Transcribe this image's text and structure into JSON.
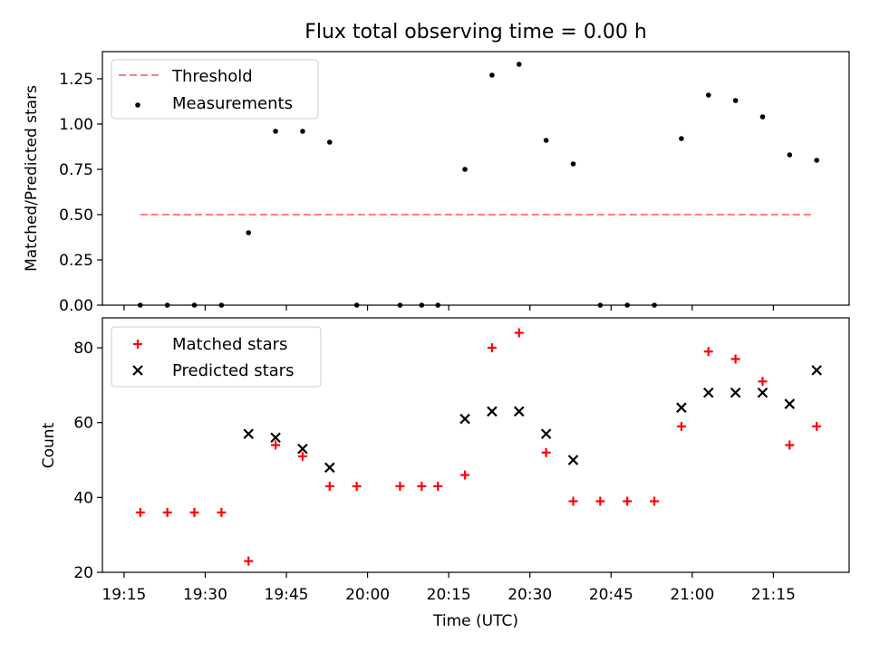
{
  "chart_data": [
    {
      "type": "scatter",
      "title": "Flux total observing time = 0.00 h",
      "xlabel": "",
      "ylabel": "Matched/Predicted stars",
      "x_unit": "time_utc",
      "xlim": [
        "19:11",
        "21:29"
      ],
      "ylim": [
        0,
        1.4
      ],
      "yticks": [
        "0.00",
        "0.25",
        "0.50",
        "0.75",
        "1.00",
        "1.25"
      ],
      "ytick_values": [
        0,
        0.25,
        0.5,
        0.75,
        1.0,
        1.25
      ],
      "xtick_labels_shown": false,
      "grid": false,
      "legend": "top-left",
      "series": [
        {
          "name": "Threshold",
          "kind": "line",
          "style": "dashed",
          "color": "#ff7f7f",
          "x": [
            "19:18",
            "21:22"
          ],
          "y": [
            0.5,
            0.5
          ]
        },
        {
          "name": "Measurements",
          "kind": "scatter",
          "marker": "dot",
          "color": "#000000",
          "x": [
            "19:18",
            "19:23",
            "19:28",
            "19:33",
            "19:38",
            "19:43",
            "19:48",
            "19:53",
            "19:58",
            "20:06",
            "20:10",
            "20:13",
            "20:18",
            "20:23",
            "20:28",
            "20:33",
            "20:38",
            "20:43",
            "20:48",
            "20:53",
            "20:58",
            "21:03",
            "21:08",
            "21:13",
            "21:18",
            "21:23"
          ],
          "y": [
            0,
            0,
            0,
            0,
            0.4,
            0.96,
            0.96,
            0.9,
            0,
            0,
            0,
            0,
            0.75,
            1.27,
            1.33,
            0.91,
            0.78,
            0,
            0,
            0,
            0.92,
            1.16,
            1.13,
            1.04,
            0.83,
            0.8
          ]
        }
      ]
    },
    {
      "type": "scatter",
      "title": "",
      "xlabel": "Time (UTC)",
      "ylabel": "Count",
      "x_unit": "time_utc",
      "xlim": [
        "19:11",
        "21:29"
      ],
      "ylim": [
        20,
        88
      ],
      "yticks": [
        "20",
        "40",
        "60",
        "80"
      ],
      "ytick_values": [
        20,
        40,
        60,
        80
      ],
      "xticks": [
        "19:15",
        "19:30",
        "19:45",
        "20:00",
        "20:15",
        "20:30",
        "20:45",
        "21:00",
        "21:15"
      ],
      "grid": false,
      "legend": "top-left",
      "series": [
        {
          "name": "Matched stars",
          "kind": "scatter",
          "marker": "plus",
          "color": "#ff0000",
          "x": [
            "19:18",
            "19:23",
            "19:28",
            "19:33",
            "19:38",
            "19:43",
            "19:48",
            "19:53",
            "19:58",
            "20:06",
            "20:10",
            "20:13",
            "20:18",
            "20:23",
            "20:28",
            "20:33",
            "20:38",
            "20:43",
            "20:48",
            "20:53",
            "20:58",
            "21:03",
            "21:08",
            "21:13",
            "21:18",
            "21:23"
          ],
          "y": [
            36,
            36,
            36,
            36,
            23,
            54,
            51,
            43,
            43,
            43,
            43,
            43,
            46,
            80,
            84,
            52,
            39,
            39,
            39,
            39,
            59,
            79,
            77,
            71,
            54,
            59
          ]
        },
        {
          "name": "Predicted stars",
          "kind": "scatter",
          "marker": "x",
          "color": "#000000",
          "x": [
            "19:38",
            "19:43",
            "19:48",
            "19:53",
            "20:18",
            "20:23",
            "20:28",
            "20:33",
            "20:38",
            "20:58",
            "21:03",
            "21:08",
            "21:13",
            "21:18",
            "21:23"
          ],
          "y": [
            57,
            56,
            53,
            48,
            61,
            63,
            63,
            57,
            50,
            64,
            68,
            68,
            68,
            65,
            74
          ]
        }
      ]
    }
  ]
}
